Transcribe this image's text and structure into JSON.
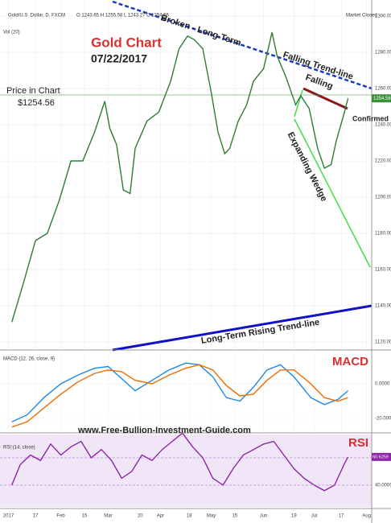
{
  "chart_data": [
    {
      "type": "line",
      "title": "Gold Chart",
      "subtitle": "07/22/2017",
      "header": "Gold/U.S. Dollar, D, FXCM",
      "ohlc": "O 1243.65 H 1255.58 L 1243.27 C 1254.56",
      "status": "Market Closed",
      "volume_label": "Vol (20)",
      "annotations": [
        "Broken - Long-Term",
        "Falling Trend-line",
        "Falling",
        "Confirmed",
        "Expanding Wedge",
        "Long-Term Rising Trend-line",
        "Price in Chart",
        "$1254.56",
        "www.Free-Bullion-Investment-Guide.com"
      ],
      "last_price": 1254.56,
      "x": [
        3,
        10,
        17,
        24,
        31,
        38,
        45,
        52,
        58,
        61,
        65,
        69,
        73,
        76,
        83,
        90,
        97,
        102,
        107,
        111,
        116,
        121,
        125,
        129,
        132,
        137,
        142,
        146,
        152,
        157,
        160,
        165,
        171,
        174,
        179,
        184,
        188,
        192,
        195,
        199,
        202
      ],
      "series": [
        {
          "name": "Gold/U.S. Dollar",
          "color": "#2e7d32",
          "values": [
            1131,
            1153,
            1176,
            1180,
            1198,
            1220,
            1220,
            1236,
            1253,
            1238,
            1229,
            1204,
            1202,
            1227,
            1242,
            1247,
            1264,
            1282,
            1289,
            1287,
            1282,
            1258,
            1236,
            1224,
            1227,
            1242,
            1251,
            1264,
            1271,
            1291,
            1278,
            1267,
            1251,
            1256,
            1249,
            1227,
            1216,
            1218,
            1231,
            1244,
            1254.56
          ]
        }
      ],
      "xlim": [
        -4,
        216
      ],
      "ylim": [
        1116.9,
        1308.9
      ],
      "yticks": [
        {
          "value": 1120,
          "label": "1120.00"
        },
        {
          "value": 1140,
          "label": "1140.00"
        },
        {
          "value": 1160,
          "label": "1160.00"
        },
        {
          "value": 1180,
          "label": "1180.00"
        },
        {
          "value": 1200,
          "label": "1200.00"
        },
        {
          "value": 1220,
          "label": "1220.00"
        },
        {
          "value": 1240,
          "label": "1240.00"
        },
        {
          "value": 1260,
          "label": "1260.00"
        },
        {
          "value": 1280,
          "label": "1280.00"
        },
        {
          "value": 1300,
          "label": "1300.00"
        }
      ]
    },
    {
      "type": "line",
      "title": "MACD",
      "header": "MACD (12, 26, close, 9)",
      "x": [
        3,
        12,
        22,
        32,
        42,
        52,
        60,
        68,
        76,
        86,
        96,
        106,
        114,
        122,
        130,
        138,
        146,
        154,
        162,
        170,
        180,
        188,
        196,
        202
      ],
      "series": [
        {
          "name": "MACD",
          "color": "#1e88e5",
          "values": [
            -22,
            -18,
            -8,
            0,
            5,
            9,
            10,
            3,
            -4,
            2,
            8,
            12,
            11,
            4,
            -8,
            -10,
            -2,
            8,
            11,
            4,
            -8,
            -12,
            -9,
            -4
          ]
        },
        {
          "name": "Signal",
          "color": "#ef6c00",
          "values": [
            -25,
            -22,
            -14,
            -6,
            1,
            6,
            8,
            7,
            2,
            0,
            5,
            9,
            11,
            8,
            -1,
            -7,
            -6,
            2,
            8,
            8,
            0,
            -8,
            -10,
            -8
          ]
        }
      ],
      "xlim": [
        -4,
        216
      ],
      "ylim": [
        -27.9,
        18.6
      ],
      "yticks": [
        {
          "value": -20,
          "label": "-20.0000"
        },
        {
          "value": 0,
          "label": "0.0000"
        }
      ]
    },
    {
      "type": "line",
      "title": "RSI",
      "header": "RSI (14, close)",
      "last_value": 60.6259,
      "x": [
        3,
        8,
        14,
        20,
        26,
        32,
        38,
        44,
        50,
        56,
        62,
        68,
        74,
        80,
        86,
        92,
        98,
        104,
        110,
        116,
        122,
        128,
        134,
        140,
        146,
        152,
        158,
        164,
        170,
        176,
        182,
        188,
        194,
        200,
        202
      ],
      "series": [
        {
          "name": "RSI",
          "color": "#8e24aa",
          "values": [
            40,
            55,
            62,
            58,
            70,
            62,
            68,
            72,
            60,
            66,
            58,
            45,
            50,
            62,
            58,
            66,
            72,
            78,
            68,
            60,
            45,
            40,
            52,
            62,
            66,
            70,
            72,
            62,
            52,
            45,
            40,
            36,
            40,
            56,
            60.6259
          ]
        }
      ],
      "xlim": [
        -4,
        216
      ],
      "ylim": [
        24.1,
        77
      ],
      "yticks": [
        {
          "value": 40,
          "label": "40.0000"
        },
        {
          "value": 60,
          "label": "60.0000"
        }
      ],
      "xticks": [
        {
          "value": 1,
          "label": "2017"
        },
        {
          "value": 17,
          "label": "17"
        },
        {
          "value": 32,
          "label": "Feb"
        },
        {
          "value": 46,
          "label": "15"
        },
        {
          "value": 60,
          "label": "Mar"
        },
        {
          "value": 79,
          "label": "20"
        },
        {
          "value": 91,
          "label": "Apr"
        },
        {
          "value": 108,
          "label": "18"
        },
        {
          "value": 121,
          "label": "May"
        },
        {
          "value": 135,
          "label": "15"
        },
        {
          "value": 152,
          "label": "Jun"
        },
        {
          "value": 170,
          "label": "19"
        },
        {
          "value": 182,
          "label": "Jul"
        },
        {
          "value": 198,
          "label": "17"
        },
        {
          "value": 213,
          "label": "Aug"
        }
      ]
    }
  ]
}
